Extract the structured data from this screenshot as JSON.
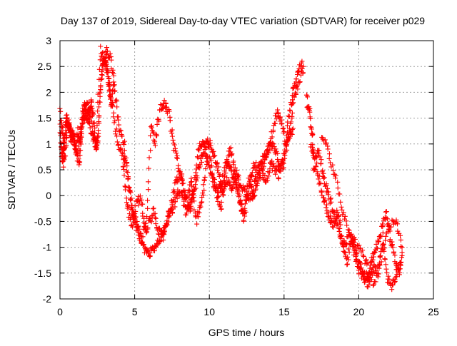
{
  "chart_data": {
    "type": "scatter",
    "title": "Day 137 of 2019, Sidereal Day-to-day VTEC variation (SDTVAR) for receiver p029",
    "xlabel": "GPS time / hours",
    "ylabel": "SDTVAR / TECUs",
    "xlim": [
      0,
      25
    ],
    "ylim": [
      -2,
      3
    ],
    "x_ticks": [
      0,
      5,
      10,
      15,
      20,
      25
    ],
    "x_tick_labels": [
      "0",
      "5",
      "10",
      "15",
      "20",
      "25"
    ],
    "y_ticks": [
      -2,
      -1.5,
      -1,
      -0.5,
      0,
      0.5,
      1,
      1.5,
      2,
      2.5,
      3
    ],
    "y_tick_labels": [
      "-2",
      "-1.5",
      "-1",
      "-0.5",
      "0",
      "0.5",
      "1",
      "1.5",
      "2",
      "2.5",
      "3"
    ],
    "grid": true,
    "marker": "+",
    "series": [
      {
        "name": "SDTVAR",
        "color": "#ff0000",
        "traces": [
          {
            "x": [
              0.0,
              0.2,
              0.3,
              0.5,
              0.7,
              1.0,
              1.3,
              1.5,
              1.8,
              2.1,
              2.4,
              2.7,
              3.0,
              3.3,
              3.6,
              3.9,
              4.2,
              4.5,
              4.8,
              5.1,
              5.4,
              5.7,
              6.0,
              6.3,
              6.6,
              6.9,
              7.2,
              7.5,
              7.8,
              8.1,
              8.4,
              8.7,
              9.0,
              9.3,
              9.6,
              9.9,
              10.2,
              10.5,
              10.8,
              11.1,
              11.4,
              11.7,
              12.0,
              12.3,
              12.6,
              12.9,
              13.2,
              13.5,
              13.8,
              14.1,
              14.4,
              14.7,
              15.0,
              15.3,
              15.6,
              15.9,
              16.2
            ],
            "y": [
              1.6,
              1.2,
              0.7,
              1.4,
              1.3,
              1.0,
              0.6,
              1.4,
              1.7,
              1.2,
              0.95,
              2.8,
              2.6,
              2.3,
              1.5,
              1.0,
              0.8,
              0.5,
              -0.3,
              -0.6,
              -0.8,
              -1.1,
              -1.15,
              -1.0,
              -0.9,
              -0.7,
              -0.5,
              -0.3,
              0.0,
              0.1,
              -0.3,
              -0.2,
              0.1,
              0.6,
              0.8,
              1.1,
              0.4,
              0.1,
              0.2,
              0.6,
              0.5,
              0.3,
              0.0,
              -0.5,
              0.3,
              0.1,
              0.4,
              0.7,
              0.8,
              1.0,
              0.9,
              0.6,
              0.6,
              1.5,
              2.0,
              2.4,
              2.6
            ]
          },
          {
            "x": [
              0.1,
              0.2,
              0.4,
              0.6,
              0.9,
              1.2,
              1.5,
              1.8,
              2.1,
              2.5,
              2.8,
              3.1,
              3.4,
              3.7,
              4.0,
              4.3,
              4.6,
              4.9,
              5.2,
              5.5,
              5.8,
              6.1,
              6.4,
              6.7,
              7.0,
              7.3,
              7.6,
              7.9,
              8.2,
              8.5,
              8.8,
              9.1,
              9.4,
              9.7,
              10.0,
              10.3,
              10.6,
              10.9,
              11.2,
              11.5,
              11.8,
              12.1,
              12.4,
              12.7,
              13.0,
              13.3,
              13.6,
              13.9,
              14.2,
              14.5,
              14.8,
              15.1,
              15.4,
              15.7,
              16.0,
              16.3
            ],
            "y": [
              0.9,
              0.6,
              1.5,
              1.4,
              1.1,
              0.7,
              1.5,
              1.8,
              1.4,
              0.9,
              2.5,
              2.8,
              2.7,
              2.0,
              1.3,
              1.0,
              0.2,
              -0.3,
              -0.6,
              -0.9,
              -0.4,
              1.3,
              1.0,
              1.7,
              1.8,
              1.6,
              1.0,
              0.6,
              0.2,
              -0.1,
              0.3,
              -0.5,
              -0.2,
              0.3,
              1.1,
              0.8,
              0.5,
              0.0,
              0.3,
              0.1,
              0.4,
              -0.2,
              -0.3,
              0.3,
              0.6,
              0.5,
              0.6,
              0.9,
              1.2,
              1.6,
              1.5,
              1.0,
              1.3,
              1.9,
              2.2,
              2.5
            ]
          },
          {
            "x": [
              0.0,
              0.15,
              0.3,
              0.45,
              0.6,
              0.75,
              0.9,
              1.05,
              1.2,
              1.35,
              1.5,
              1.65,
              1.8,
              1.95,
              2.1,
              2.25,
              2.4,
              2.55,
              2.7,
              2.85,
              3.0,
              3.15,
              3.3,
              3.45,
              3.6
            ],
            "y": [
              1.3,
              0.8,
              1.0,
              1.5,
              1.3,
              1.1,
              1.2,
              0.9,
              1.25,
              1.0,
              1.6,
              1.75,
              1.45,
              1.6,
              1.8,
              1.5,
              0.95,
              1.1,
              2.1,
              2.5,
              2.65,
              2.45,
              2.0,
              1.7,
              2.2
            ]
          },
          {
            "x": [
              4.2,
              4.5,
              4.8,
              5.1,
              5.4,
              5.7,
              6.0,
              6.3,
              6.6,
              6.9,
              7.2,
              7.5,
              7.8,
              8.1,
              8.4,
              8.7,
              9.0,
              9.3,
              9.6,
              9.9,
              10.2,
              10.5,
              10.8,
              11.1,
              11.4,
              11.7,
              12.0,
              12.3,
              12.6,
              12.9,
              13.2,
              13.5,
              13.8,
              14.1,
              14.4,
              14.7,
              15.0,
              15.3,
              15.6
            ],
            "y": [
              0.6,
              -0.2,
              -0.6,
              -0.2,
              0.0,
              -0.7,
              -0.5,
              -0.3,
              -0.7,
              -0.8,
              -0.4,
              -0.1,
              0.3,
              0.4,
              -0.1,
              -0.3,
              0.2,
              0.9,
              1.0,
              0.7,
              0.3,
              0.0,
              -0.2,
              0.6,
              0.9,
              0.5,
              0.3,
              0.1,
              0.0,
              0.0,
              0.2,
              0.5,
              0.3,
              0.6,
              0.5,
              0.4,
              0.8,
              1.1,
              1.3
            ]
          },
          {
            "x": [
              16.5,
              16.7,
              16.9,
              17.0,
              17.3,
              17.6,
              17.9,
              18.2,
              18.5,
              18.8,
              19.1,
              19.4,
              19.7,
              20.0,
              20.3,
              20.6,
              20.9,
              21.2,
              21.5,
              21.8,
              22.1,
              22.4,
              22.7,
              22.9
            ],
            "y": [
              1.9,
              1.6,
              1.2,
              0.5,
              0.9,
              0.4,
              0.1,
              -0.2,
              -0.5,
              -0.8,
              -1.0,
              -0.7,
              -1.0,
              -1.3,
              -1.5,
              -1.6,
              -1.2,
              -1.0,
              -0.7,
              -0.3,
              -0.8,
              -1.2,
              -1.5,
              -1.1
            ]
          },
          {
            "x": [
              16.8,
              17.1,
              17.4,
              17.7,
              18.0,
              18.3,
              18.6,
              18.9,
              19.2,
              19.5,
              19.8,
              20.1,
              20.4,
              20.7,
              21.0,
              21.3,
              21.6,
              21.9,
              22.2,
              22.5,
              22.8
            ],
            "y": [
              1.0,
              0.7,
              0.2,
              -0.1,
              -0.4,
              -0.6,
              -0.3,
              -0.9,
              -1.3,
              -0.9,
              -1.2,
              -1.5,
              -1.65,
              -1.7,
              -1.4,
              -1.5,
              -0.8,
              -1.6,
              -1.75,
              -1.5,
              -1.3
            ]
          },
          {
            "x": [
              17.5,
              18.0,
              18.5,
              19.0,
              19.5,
              20.0,
              20.5,
              21.0,
              21.5,
              22.0,
              22.5,
              22.9
            ],
            "y": [
              1.2,
              0.8,
              0.3,
              -0.4,
              -0.8,
              -1.0,
              -1.3,
              -1.7,
              -1.2,
              -0.6,
              -0.5,
              -1.0
            ]
          }
        ]
      }
    ]
  }
}
